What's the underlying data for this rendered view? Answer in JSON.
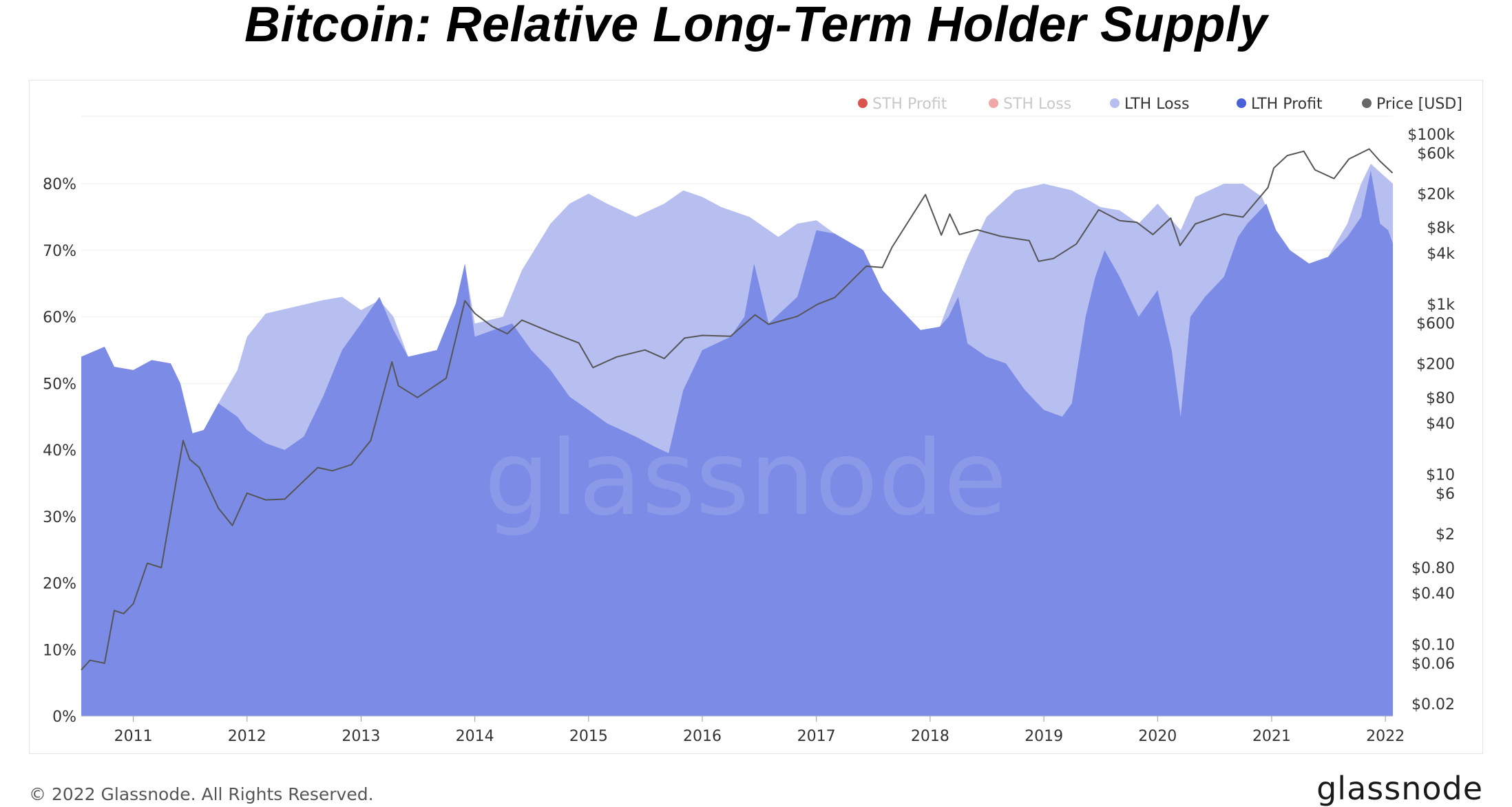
{
  "title": "Bitcoin: Relative Long-Term Holder Supply",
  "footer": {
    "copyright": "© 2022 Glassnode. All Rights Reserved.",
    "brand": "glassnode"
  },
  "watermark": "glassnode",
  "colors": {
    "sth_profit": "#d9534f",
    "sth_loss": "#f0a8a6",
    "lth_loss": "#b6bff0",
    "lth_profit": "#7b8be6",
    "lth_profit_dot": "#4a5fd8",
    "price": "#555555",
    "legend_faded_text": "#c8c8c8",
    "legend_text": "#333333",
    "grid": "#eeeeee",
    "axis_text": "#333333"
  },
  "chart_data": {
    "type": "area",
    "legend_position": "top-right",
    "grid": true,
    "legend": [
      {
        "name": "STH Profit",
        "icon": "red-dot-icon",
        "faded": true
      },
      {
        "name": "STH Loss",
        "icon": "pink-dot-icon",
        "faded": true
      },
      {
        "name": "LTH Loss",
        "icon": "light-blue-dot-icon",
        "faded": false
      },
      {
        "name": "LTH Profit",
        "icon": "blue-dot-icon",
        "faded": false
      },
      {
        "name": "Price [USD]",
        "icon": "gray-dot-icon",
        "faded": false
      }
    ],
    "x_axis": {
      "type": "date",
      "range": [
        "2010-07-18",
        "2022-01-25"
      ],
      "ticks": [
        {
          "date": "2011-01-01",
          "label": "2011"
        },
        {
          "date": "2012-01-01",
          "label": "2012"
        },
        {
          "date": "2013-01-01",
          "label": "2013"
        },
        {
          "date": "2014-01-01",
          "label": "2014"
        },
        {
          "date": "2015-01-01",
          "label": "2015"
        },
        {
          "date": "2016-01-01",
          "label": "2016"
        },
        {
          "date": "2017-01-01",
          "label": "2017"
        },
        {
          "date": "2018-01-01",
          "label": "2018"
        },
        {
          "date": "2019-01-01",
          "label": "2019"
        },
        {
          "date": "2020-01-01",
          "label": "2020"
        },
        {
          "date": "2021-01-01",
          "label": "2021"
        },
        {
          "date": "2022-01-01",
          "label": "2022"
        }
      ]
    },
    "y_left": {
      "unit": "percent",
      "range": [
        0,
        90
      ],
      "ticks": [
        {
          "value": 0,
          "label": "0%"
        },
        {
          "value": 10,
          "label": "10%"
        },
        {
          "value": 20,
          "label": "20%"
        },
        {
          "value": 30,
          "label": "30%"
        },
        {
          "value": 40,
          "label": "40%"
        },
        {
          "value": 50,
          "label": "50%"
        },
        {
          "value": 60,
          "label": "60%"
        },
        {
          "value": 70,
          "label": "70%"
        },
        {
          "value": 80,
          "label": "80%"
        }
      ]
    },
    "y_right": {
      "unit": "USD",
      "scale": "log",
      "range": [
        0.02,
        100000
      ],
      "ticks": [
        {
          "value": 100000,
          "label": "$100k"
        },
        {
          "value": 60000,
          "label": "$60k"
        },
        {
          "value": 20000,
          "label": "$20k"
        },
        {
          "value": 8000,
          "label": "$8k"
        },
        {
          "value": 4000,
          "label": "$4k"
        },
        {
          "value": 1000,
          "label": "$1k"
        },
        {
          "value": 600,
          "label": "$600"
        },
        {
          "value": 200,
          "label": "$200"
        },
        {
          "value": 80,
          "label": "$80"
        },
        {
          "value": 40,
          "label": "$40"
        },
        {
          "value": 10,
          "label": "$10"
        },
        {
          "value": 6,
          "label": "$6"
        },
        {
          "value": 2,
          "label": "$2"
        },
        {
          "value": 0.8,
          "label": "$0.80"
        },
        {
          "value": 0.4,
          "label": "$0.40"
        },
        {
          "value": 0.1,
          "label": "$0.10"
        },
        {
          "value": 0.06,
          "label": "$0.06"
        },
        {
          "value": 0.02,
          "label": "$0.02"
        }
      ]
    },
    "series": [
      {
        "name": "LTH Loss",
        "note_stacking": "cumulative top of relative LTH supply (LTH Loss stacked above LTH Profit)",
        "points": [
          [
            "2010-07-18",
            54
          ],
          [
            "2010-10-01",
            55.5
          ],
          [
            "2010-11-01",
            52.5
          ],
          [
            "2011-01-01",
            52
          ],
          [
            "2011-03-01",
            53.5
          ],
          [
            "2011-05-01",
            53
          ],
          [
            "2011-06-01",
            50
          ],
          [
            "2011-07-10",
            42.5
          ],
          [
            "2011-08-15",
            43
          ],
          [
            "2011-10-01",
            47
          ],
          [
            "2011-12-01",
            52
          ],
          [
            "2012-01-01",
            57
          ],
          [
            "2012-03-01",
            60.5
          ],
          [
            "2012-06-01",
            61.5
          ],
          [
            "2012-09-01",
            62.5
          ],
          [
            "2012-11-01",
            63
          ],
          [
            "2013-01-01",
            61
          ],
          [
            "2013-03-01",
            62.5
          ],
          [
            "2013-04-15",
            60
          ],
          [
            "2013-06-01",
            54
          ],
          [
            "2013-09-01",
            55
          ],
          [
            "2013-11-01",
            62
          ],
          [
            "2013-11-30",
            68
          ],
          [
            "2014-01-01",
            59
          ],
          [
            "2014-04-01",
            60
          ],
          [
            "2014-06-01",
            67
          ],
          [
            "2014-09-01",
            74
          ],
          [
            "2014-11-01",
            77
          ],
          [
            "2015-01-01",
            78.5
          ],
          [
            "2015-03-01",
            77
          ],
          [
            "2015-06-01",
            75
          ],
          [
            "2015-09-01",
            77
          ],
          [
            "2015-11-01",
            79
          ],
          [
            "2016-01-01",
            78
          ],
          [
            "2016-03-01",
            76.5
          ],
          [
            "2016-06-01",
            75
          ],
          [
            "2016-09-01",
            72
          ],
          [
            "2016-11-01",
            74
          ],
          [
            "2017-01-01",
            74.5
          ],
          [
            "2017-03-01",
            72.5
          ],
          [
            "2017-06-01",
            70
          ],
          [
            "2017-08-01",
            64
          ],
          [
            "2017-10-01",
            61
          ],
          [
            "2017-12-01",
            58
          ],
          [
            "2018-02-01",
            58.5
          ],
          [
            "2018-03-01",
            62
          ],
          [
            "2018-05-01",
            69
          ],
          [
            "2018-07-01",
            75
          ],
          [
            "2018-10-01",
            79
          ],
          [
            "2019-01-01",
            80
          ],
          [
            "2019-04-01",
            79
          ],
          [
            "2019-07-01",
            76.5
          ],
          [
            "2019-09-01",
            76
          ],
          [
            "2019-11-01",
            74
          ],
          [
            "2020-01-01",
            77
          ],
          [
            "2020-03-15",
            73
          ],
          [
            "2020-05-01",
            78
          ],
          [
            "2020-08-01",
            80
          ],
          [
            "2020-10-01",
            80
          ],
          [
            "2020-12-01",
            78
          ],
          [
            "2021-01-15",
            73
          ],
          [
            "2021-03-01",
            70
          ],
          [
            "2021-05-01",
            68
          ],
          [
            "2021-07-01",
            69
          ],
          [
            "2021-09-01",
            74
          ],
          [
            "2021-10-15",
            80
          ],
          [
            "2021-11-15",
            83
          ],
          [
            "2022-01-01",
            81
          ],
          [
            "2022-01-25",
            80
          ]
        ]
      },
      {
        "name": "LTH Profit",
        "points": [
          [
            "2010-07-18",
            54
          ],
          [
            "2010-10-01",
            55.5
          ],
          [
            "2010-11-01",
            52.5
          ],
          [
            "2011-01-01",
            52
          ],
          [
            "2011-03-01",
            53.5
          ],
          [
            "2011-05-01",
            53
          ],
          [
            "2011-06-01",
            50
          ],
          [
            "2011-07-10",
            42.5
          ],
          [
            "2011-08-15",
            43
          ],
          [
            "2011-10-01",
            47
          ],
          [
            "2011-12-01",
            45
          ],
          [
            "2012-01-01",
            43
          ],
          [
            "2012-03-01",
            41
          ],
          [
            "2012-05-01",
            40
          ],
          [
            "2012-07-01",
            42
          ],
          [
            "2012-09-01",
            48
          ],
          [
            "2012-11-01",
            55
          ],
          [
            "2013-01-01",
            59
          ],
          [
            "2013-03-01",
            63
          ],
          [
            "2013-04-15",
            58
          ],
          [
            "2013-06-01",
            54
          ],
          [
            "2013-09-01",
            55
          ],
          [
            "2013-11-01",
            62
          ],
          [
            "2013-11-30",
            68
          ],
          [
            "2014-01-01",
            57
          ],
          [
            "2014-03-01",
            58
          ],
          [
            "2014-05-01",
            59
          ],
          [
            "2014-07-01",
            55
          ],
          [
            "2014-09-01",
            52
          ],
          [
            "2014-11-01",
            48
          ],
          [
            "2015-01-01",
            46
          ],
          [
            "2015-03-01",
            44
          ],
          [
            "2015-06-01",
            42
          ],
          [
            "2015-08-01",
            40.5
          ],
          [
            "2015-09-15",
            39.5
          ],
          [
            "2015-11-01",
            49
          ],
          [
            "2016-01-01",
            55
          ],
          [
            "2016-04-01",
            57
          ],
          [
            "2016-05-15",
            60
          ],
          [
            "2016-06-15",
            68
          ],
          [
            "2016-08-01",
            59
          ],
          [
            "2016-11-01",
            63
          ],
          [
            "2017-01-01",
            73
          ],
          [
            "2017-03-01",
            72.5
          ],
          [
            "2017-06-01",
            70
          ],
          [
            "2017-08-01",
            64
          ],
          [
            "2017-10-01",
            61
          ],
          [
            "2017-12-01",
            58
          ],
          [
            "2018-02-01",
            58.5
          ],
          [
            "2018-03-01",
            60
          ],
          [
            "2018-04-01",
            63
          ],
          [
            "2018-05-01",
            56
          ],
          [
            "2018-07-01",
            54
          ],
          [
            "2018-09-01",
            53
          ],
          [
            "2018-11-01",
            49
          ],
          [
            "2019-01-01",
            46
          ],
          [
            "2019-03-01",
            45
          ],
          [
            "2019-04-01",
            47
          ],
          [
            "2019-05-15",
            60
          ],
          [
            "2019-06-15",
            66
          ],
          [
            "2019-07-15",
            70
          ],
          [
            "2019-09-01",
            66
          ],
          [
            "2019-11-01",
            60
          ],
          [
            "2020-01-01",
            64
          ],
          [
            "2020-02-15",
            55
          ],
          [
            "2020-03-15",
            45
          ],
          [
            "2020-04-15",
            60
          ],
          [
            "2020-06-01",
            63
          ],
          [
            "2020-08-01",
            66
          ],
          [
            "2020-09-15",
            72
          ],
          [
            "2020-10-15",
            74
          ],
          [
            "2020-12-15",
            77
          ],
          [
            "2021-01-15",
            73
          ],
          [
            "2021-03-01",
            70
          ],
          [
            "2021-05-01",
            68
          ],
          [
            "2021-07-01",
            69
          ],
          [
            "2021-09-01",
            72
          ],
          [
            "2021-10-15",
            75
          ],
          [
            "2021-11-15",
            82
          ],
          [
            "2021-12-15",
            74
          ],
          [
            "2022-01-10",
            73
          ],
          [
            "2022-01-25",
            71
          ]
        ]
      },
      {
        "name": "Price [USD]",
        "axis": "right",
        "points": [
          [
            "2010-07-18",
            0.05
          ],
          [
            "2010-08-15",
            0.065
          ],
          [
            "2010-10-01",
            0.06
          ],
          [
            "2010-11-01",
            0.25
          ],
          [
            "2010-12-01",
            0.23
          ],
          [
            "2011-01-01",
            0.3
          ],
          [
            "2011-02-15",
            0.9
          ],
          [
            "2011-04-01",
            0.8
          ],
          [
            "2011-05-01",
            3.5
          ],
          [
            "2011-06-10",
            25
          ],
          [
            "2011-07-01",
            15
          ],
          [
            "2011-08-01",
            12
          ],
          [
            "2011-10-01",
            4
          ],
          [
            "2011-11-15",
            2.5
          ],
          [
            "2012-01-01",
            6
          ],
          [
            "2012-03-01",
            5
          ],
          [
            "2012-05-01",
            5.1
          ],
          [
            "2012-08-15",
            12
          ],
          [
            "2012-10-01",
            11
          ],
          [
            "2012-12-01",
            13
          ],
          [
            "2013-02-01",
            25
          ],
          [
            "2013-04-10",
            210
          ],
          [
            "2013-05-01",
            110
          ],
          [
            "2013-07-01",
            80
          ],
          [
            "2013-10-01",
            135
          ],
          [
            "2013-11-30",
            1100
          ],
          [
            "2014-01-01",
            780
          ],
          [
            "2014-02-25",
            550
          ],
          [
            "2014-04-15",
            450
          ],
          [
            "2014-06-01",
            650
          ],
          [
            "2014-09-01",
            470
          ],
          [
            "2014-12-01",
            350
          ],
          [
            "2015-01-15",
            180
          ],
          [
            "2015-04-01",
            240
          ],
          [
            "2015-07-01",
            290
          ],
          [
            "2015-09-01",
            230
          ],
          [
            "2015-11-05",
            400
          ],
          [
            "2016-01-01",
            430
          ],
          [
            "2016-04-01",
            420
          ],
          [
            "2016-06-18",
            750
          ],
          [
            "2016-08-01",
            580
          ],
          [
            "2016-11-01",
            720
          ],
          [
            "2017-01-05",
            1000
          ],
          [
            "2017-03-01",
            1200
          ],
          [
            "2017-06-10",
            2800
          ],
          [
            "2017-08-01",
            2700
          ],
          [
            "2017-09-01",
            4700
          ],
          [
            "2017-12-17",
            19500
          ],
          [
            "2018-02-06",
            6500
          ],
          [
            "2018-03-05",
            11500
          ],
          [
            "2018-04-05",
            6600
          ],
          [
            "2018-06-01",
            7500
          ],
          [
            "2018-08-15",
            6300
          ],
          [
            "2018-11-15",
            5600
          ],
          [
            "2018-12-15",
            3200
          ],
          [
            "2019-02-01",
            3450
          ],
          [
            "2019-04-15",
            5100
          ],
          [
            "2019-06-26",
            12900
          ],
          [
            "2019-09-01",
            9600
          ],
          [
            "2019-10-26",
            9200
          ],
          [
            "2019-12-17",
            6600
          ],
          [
            "2020-02-12",
            10300
          ],
          [
            "2020-03-13",
            4900
          ],
          [
            "2020-05-01",
            8800
          ],
          [
            "2020-08-01",
            11500
          ],
          [
            "2020-10-01",
            10600
          ],
          [
            "2020-12-20",
            23500
          ],
          [
            "2021-01-08",
            40000
          ],
          [
            "2021-02-20",
            56000
          ],
          [
            "2021-04-14",
            63000
          ],
          [
            "2021-05-20",
            38000
          ],
          [
            "2021-07-20",
            30000
          ],
          [
            "2021-09-06",
            51000
          ],
          [
            "2021-11-10",
            67000
          ],
          [
            "2021-12-15",
            48000
          ],
          [
            "2022-01-24",
            35000
          ]
        ]
      }
    ]
  }
}
